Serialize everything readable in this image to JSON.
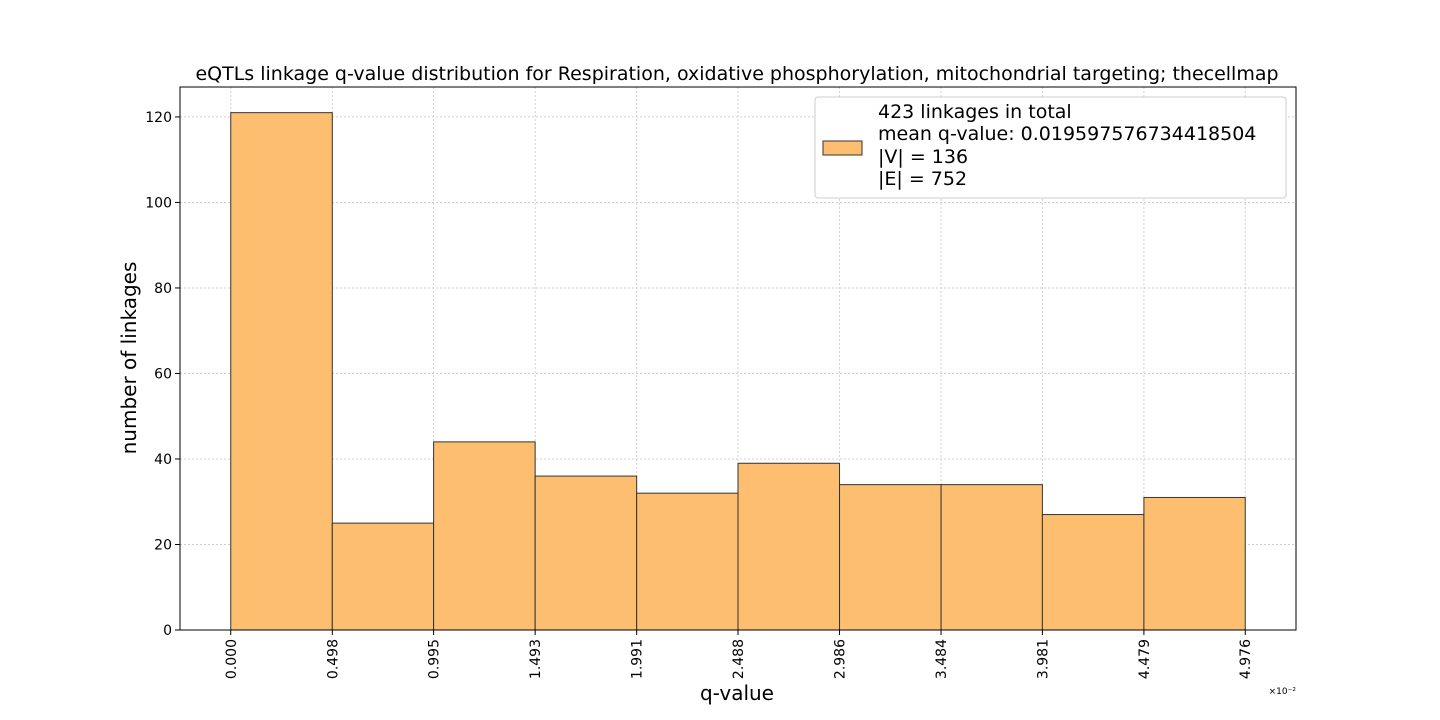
{
  "chart_data": {
    "type": "bar",
    "title": "eQTLs linkage q-value distribution for Respiration, oxidative phosphorylation, mitochondrial targeting; thecellmap",
    "xlabel": "q-value",
    "ylabel": "number of linkages",
    "x_scale_label": "×10⁻²",
    "bin_edges": [
      0.0,
      0.498,
      0.995,
      1.493,
      1.991,
      2.488,
      2.986,
      3.484,
      3.981,
      4.479,
      4.976
    ],
    "x_tick_labels": [
      "0.000",
      "0.498",
      "0.995",
      "1.493",
      "1.991",
      "2.488",
      "2.986",
      "3.484",
      "3.981",
      "4.479",
      "4.976"
    ],
    "values": [
      121,
      25,
      44,
      36,
      32,
      39,
      34,
      34,
      27,
      31
    ],
    "y_ticks": [
      0,
      20,
      40,
      60,
      80,
      100,
      120
    ],
    "ylim": [
      0,
      127
    ],
    "xlim": [
      -0.249,
      5.225
    ],
    "grid": true,
    "bar_color": "#fdbf6f",
    "bar_edge_color": "#333333",
    "legend": {
      "placement": "top-right",
      "lines": [
        "423 linkages in total",
        "mean q-value: 0.019597576734418504",
        "|V| = 136",
        "|E| = 752"
      ]
    }
  }
}
